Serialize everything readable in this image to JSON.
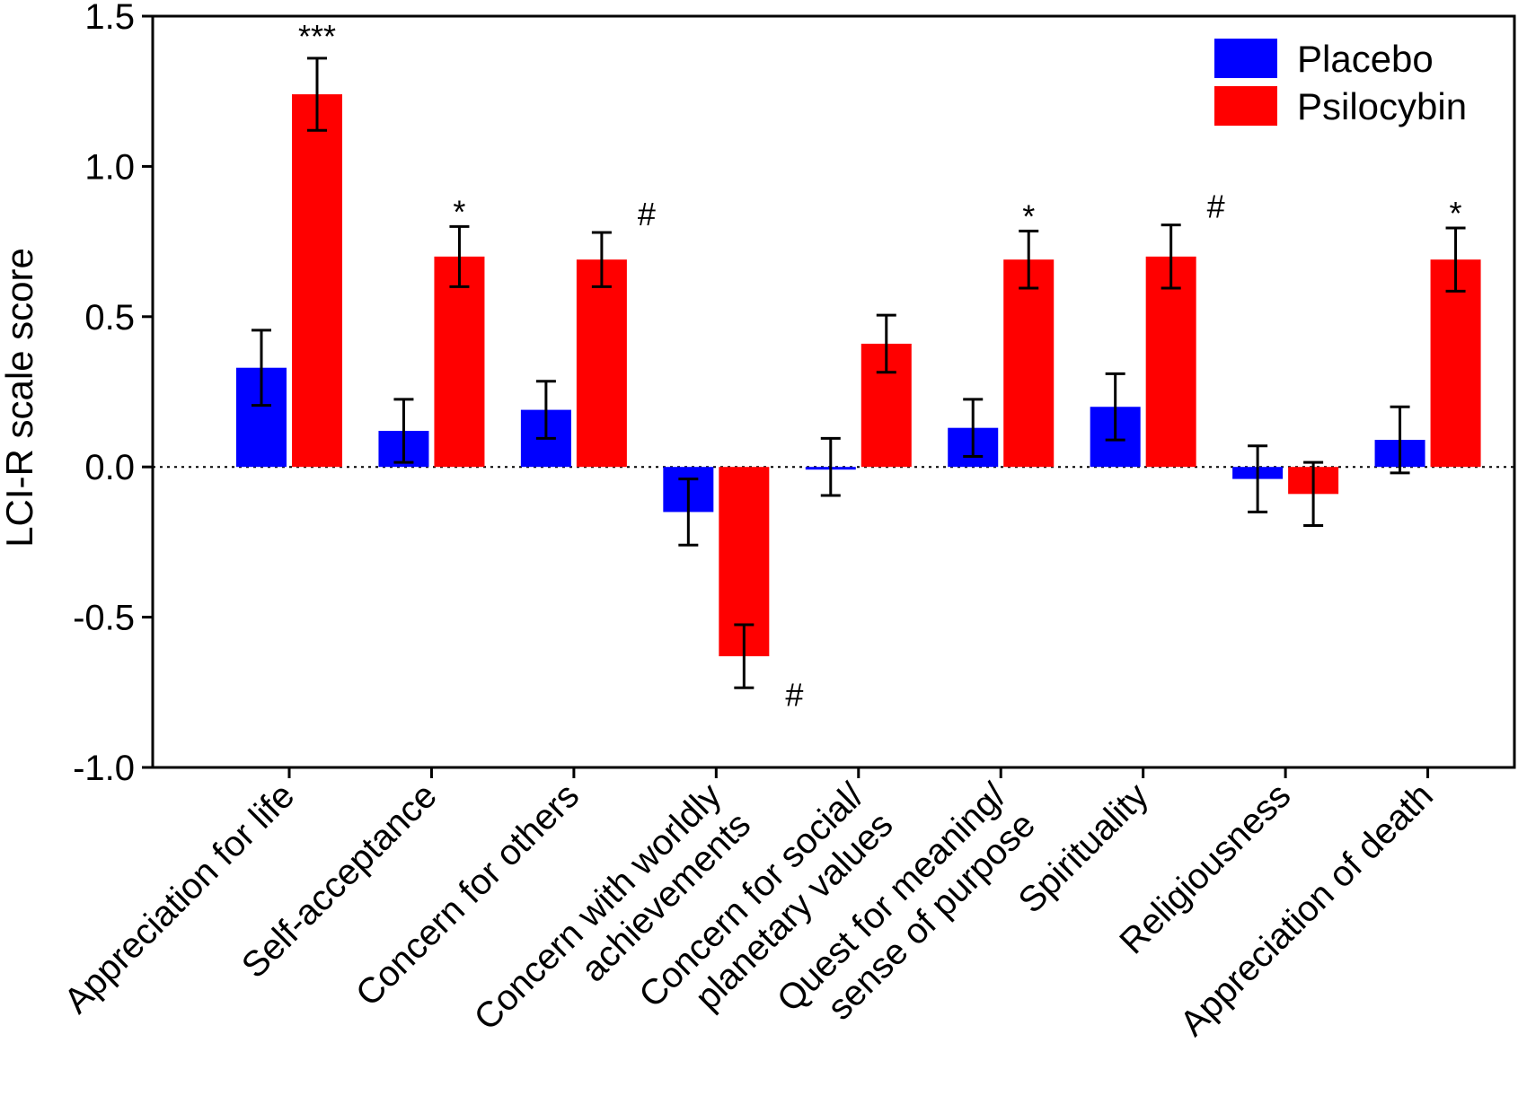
{
  "chart_data": {
    "type": "bar",
    "title": "",
    "xlabel": "",
    "ylabel": "LCI-R scale score",
    "ylim": [
      -1.0,
      1.5
    ],
    "yticks": [
      -1.0,
      -0.5,
      0.0,
      0.5,
      1.0,
      1.5
    ],
    "ytick_labels": [
      "-1.0",
      "-0.5",
      "0.0",
      "0.5",
      "1.0",
      "1.5"
    ],
    "legend_position": "top-right",
    "zero_line": "dotted",
    "categories": [
      [
        "Appreciation for life"
      ],
      [
        "Self-acceptance"
      ],
      [
        "Concern for others"
      ],
      [
        "Concern with worldly",
        "achievements"
      ],
      [
        "Concern for social/",
        "planetary values"
      ],
      [
        "Quest for meaning/",
        "sense of purpose"
      ],
      [
        "Spirituality"
      ],
      [
        "Religiousness"
      ],
      [
        "Appreciation of death"
      ]
    ],
    "series": [
      {
        "name": "Placebo",
        "color": "#0000ff",
        "values": [
          0.33,
          0.12,
          0.19,
          -0.15,
          0.0,
          0.13,
          0.2,
          -0.04,
          0.09
        ],
        "errors": [
          0.125,
          0.105,
          0.095,
          0.11,
          0.095,
          0.095,
          0.11,
          0.11,
          0.11
        ]
      },
      {
        "name": "Psilocybin",
        "color": "#ff0000",
        "values": [
          1.24,
          0.7,
          0.69,
          -0.63,
          0.41,
          0.69,
          0.7,
          -0.09,
          0.69
        ],
        "errors": [
          0.12,
          0.1,
          0.09,
          0.105,
          0.095,
          0.095,
          0.105,
          0.105,
          0.105
        ]
      }
    ],
    "annotations": [
      {
        "category": 0,
        "text": "***",
        "position": "above-psilocybin"
      },
      {
        "category": 1,
        "text": "*",
        "position": "above-psilocybin"
      },
      {
        "category": 2,
        "text": "#",
        "position": "right-of-psilocybin"
      },
      {
        "category": 3,
        "text": "#",
        "position": "right-below-psilocybin"
      },
      {
        "category": 5,
        "text": "*",
        "position": "above-psilocybin"
      },
      {
        "category": 6,
        "text": "#",
        "position": "right-of-psilocybin"
      },
      {
        "category": 8,
        "text": "*",
        "position": "above-psilocybin"
      }
    ]
  }
}
